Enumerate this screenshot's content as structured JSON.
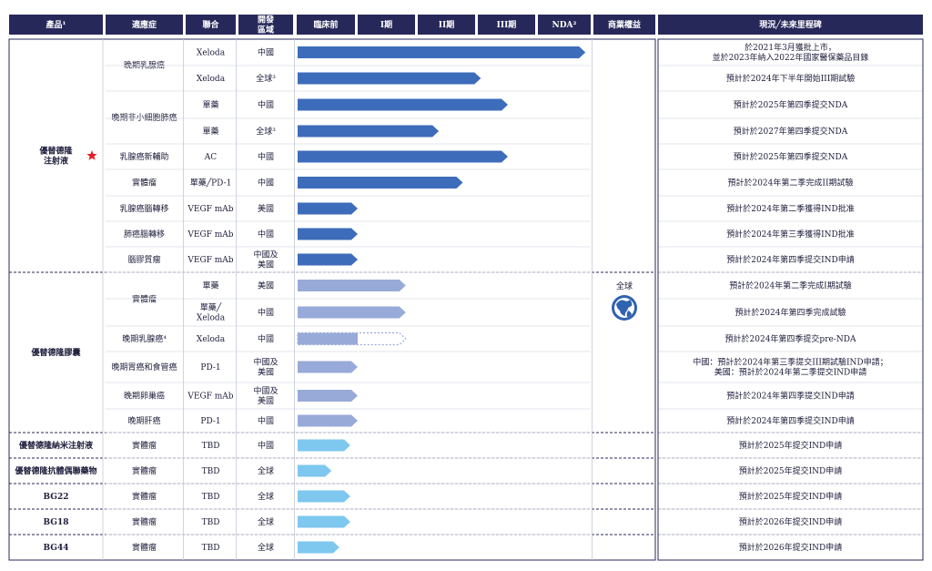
{
  "chart_data": {
    "type": "table",
    "headers": [
      "產品¹",
      "適應症",
      "聯合",
      "開發\n區域",
      "臨床前",
      "I期",
      "II期",
      "III期",
      "NDA²",
      "商業權益",
      "現況╱未來里程碑"
    ],
    "phases": [
      "臨床前",
      "I期",
      "II期",
      "III期",
      "NDA²"
    ],
    "commercial_rights": "全球",
    "colors": {
      "header": "#27285a",
      "bar_dark": "#3d6cba",
      "bar_light": "#98aad8",
      "bar_sky": "#7ec7ef",
      "star": "#e31e24",
      "globe": "#2f62b0"
    },
    "products": [
      {
        "name": "優替德隆\n注射液",
        "star": true,
        "rows": [
          {
            "indication": "晚期乳腺癌",
            "combo": "Xeloda",
            "region": "中國",
            "progress": 4.9,
            "style": "dark",
            "milestone": "於2021年3月獲批上市，\n並於2023年納入2022年國家醫保藥品目錄"
          },
          {
            "indication": "",
            "combo": "Xeloda",
            "region": "全球³",
            "progress": 3.05,
            "style": "dark",
            "milestone": "預計於2024年下半年開始III期試驗"
          },
          {
            "indication": "晚期非小細胞肺癌",
            "combo": "單藥",
            "region": "中國",
            "progress": 3.5,
            "style": "dark",
            "milestone": "預計於2025年第四季提交NDA"
          },
          {
            "indication": "",
            "combo": "單藥",
            "region": "全球³",
            "progress": 2.35,
            "style": "dark",
            "milestone": "預計於2027年第四季提交NDA"
          },
          {
            "indication": "乳腺癌新輔助",
            "combo": "AC",
            "region": "中國",
            "progress": 3.5,
            "style": "dark",
            "milestone": "預計於2025年第四季提交NDA"
          },
          {
            "indication": "實體瘤",
            "combo": "單藥╱PD-1",
            "region": "中國",
            "progress": 2.75,
            "style": "dark",
            "milestone": "預計於2024年第二季完成II期試驗"
          },
          {
            "indication": "乳腺癌腦轉移",
            "combo": "VEGF mAb",
            "region": "美國",
            "progress": 1.0,
            "style": "dark",
            "milestone": "預計於2024年第二季獲得IND批准"
          },
          {
            "indication": "肺癌腦轉移",
            "combo": "VEGF mAb",
            "region": "中國",
            "progress": 1.0,
            "style": "dark",
            "milestone": "預計於2024年第三季獲得IND批准"
          },
          {
            "indication": "腦膠質瘤",
            "combo": "VEGF mAb",
            "region": "中國及\n美國",
            "progress": 1.0,
            "style": "dark",
            "milestone": "預計於2024年第四季提交IND申請"
          }
        ]
      },
      {
        "name": "優替德隆膠囊",
        "star": false,
        "rows": [
          {
            "indication": "實體瘤",
            "combo": "單藥",
            "region": "美國",
            "progress": 1.8,
            "style": "light",
            "milestone": "預計於2024年第二季完成I期試驗"
          },
          {
            "indication": "",
            "combo": "單藥╱\nXeloda",
            "region": "中國",
            "progress": 1.8,
            "style": "light",
            "milestone": "預計於2024年第四季完成試驗"
          },
          {
            "indication": "晚期乳腺癌⁴",
            "combo": "Xeloda",
            "region": "中國",
            "progress": 1.8,
            "style": "light-dotted",
            "milestone": "預計於2024年第四季提交pre-NDA"
          },
          {
            "indication": "晚期胃癌和食管癌",
            "combo": "PD-1",
            "region": "中國及\n美國",
            "progress": 1.0,
            "style": "light",
            "milestone": "中國：預計於2024年第三季提交III期試驗IND申請；\n美國：預計於2024年第二季提交IND申請"
          },
          {
            "indication": "晚期卵巢癌",
            "combo": "VEGF mAb",
            "region": "中國及\n美國",
            "progress": 1.0,
            "style": "light",
            "milestone": "預計於2024年第四季提交IND申請"
          },
          {
            "indication": "晚期肝癌",
            "combo": "PD-1",
            "region": "中國",
            "progress": 1.0,
            "style": "light",
            "milestone": "預計於2024年第四季提交IND申請"
          }
        ]
      },
      {
        "name": "優替德隆納米注射液",
        "star": false,
        "rows": [
          {
            "indication": "實體瘤",
            "combo": "TBD",
            "region": "中國",
            "progress": 0.88,
            "style": "sky",
            "milestone": "預計於2025年提交IND申請"
          }
        ]
      },
      {
        "name": "優替德隆抗體偶聯藥物",
        "star": false,
        "rows": [
          {
            "indication": "實體瘤",
            "combo": "TBD",
            "region": "全球",
            "progress": 0.57,
            "style": "sky",
            "milestone": "預計於2025年提交IND申請"
          }
        ]
      },
      {
        "name": "BG22",
        "star": false,
        "rows": [
          {
            "indication": "實體瘤",
            "combo": "TBD",
            "region": "全球",
            "progress": 0.88,
            "style": "sky",
            "milestone": "預計於2025年提交IND申請"
          }
        ]
      },
      {
        "name": "BG18",
        "star": false,
        "rows": [
          {
            "indication": "實體瘤",
            "combo": "TBD",
            "region": "全球",
            "progress": 0.88,
            "style": "sky",
            "milestone": "預計於2026年提交IND申請"
          }
        ]
      },
      {
        "name": "BG44",
        "star": false,
        "rows": [
          {
            "indication": "實體瘤",
            "combo": "TBD",
            "region": "全球",
            "progress": 0.7,
            "style": "sky",
            "milestone": "預計於2026年提交IND申請"
          }
        ]
      }
    ]
  }
}
